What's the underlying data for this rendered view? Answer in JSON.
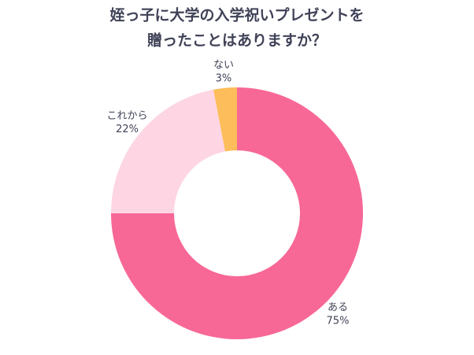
{
  "chart_data": {
    "type": "pie",
    "donut": true,
    "title": [
      "姪っ子に大学の入学祝いプレゼントを",
      "贈ったことはありますか？"
    ],
    "categories": [
      "ある",
      "これから",
      "ない"
    ],
    "values": [
      75,
      22,
      3
    ],
    "value_labels": [
      "75%",
      "22%",
      "3%"
    ],
    "colors": [
      "#f76896",
      "#fdd5e3",
      "#fdbd5a"
    ]
  }
}
